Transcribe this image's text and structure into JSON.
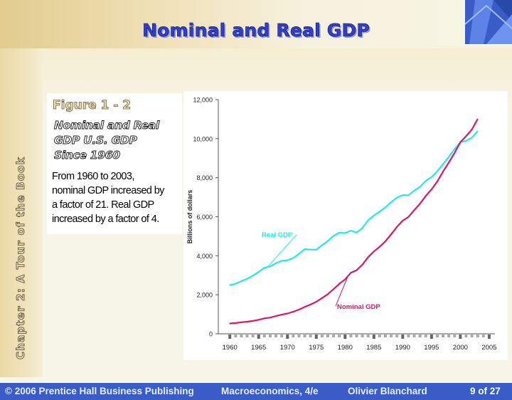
{
  "slide": {
    "title": "Nominal and Real GDP",
    "vertical_label": "Chapter 2:  A Tour of the Book"
  },
  "caption": {
    "figure_label": "Figure 1 - 2",
    "figure_title_lines": [
      "Nominal and Real",
      "GDP U.S. GDP",
      "Since 1960"
    ],
    "description_lines": [
      "From 1960 to 2003,",
      "nominal GDP increased by",
      "a factor of 21.  Real GDP",
      "increased by a factor of 4."
    ]
  },
  "footer": {
    "publisher": "© 2006 Prentice Hall Business Publishing",
    "book": "Macroeconomics, 4/e",
    "author": "Olivier Blanchard",
    "page": "9 of 27"
  },
  "colors": {
    "real_gdp": "#22e8ee",
    "nominal_gdp": "#d8156e",
    "footer": "#3a5cc6",
    "title": "#3240c8"
  },
  "chart_data": {
    "type": "line",
    "ylabel": "Billions of dollars",
    "xlim": [
      1958,
      2006
    ],
    "ylim": [
      0,
      12000
    ],
    "x_ticks": [
      1960,
      1965,
      1970,
      1975,
      1980,
      1985,
      1990,
      1995,
      2000,
      2005
    ],
    "y_ticks": [
      0,
      2000,
      4000,
      6000,
      8000,
      10000,
      12000
    ],
    "y_tick_labels": [
      "0",
      "2,000",
      "4,000",
      "6,000",
      "8,000",
      "10,000",
      "12,000"
    ],
    "series": [
      {
        "name": "Real GDP",
        "x": [
          1960,
          1961,
          1962,
          1963,
          1964,
          1965,
          1966,
          1967,
          1968,
          1969,
          1970,
          1971,
          1972,
          1973,
          1974,
          1975,
          1976,
          1977,
          1978,
          1979,
          1980,
          1981,
          1982,
          1983,
          1984,
          1985,
          1986,
          1987,
          1988,
          1989,
          1990,
          1991,
          1992,
          1993,
          1994,
          1995,
          1996,
          1997,
          1998,
          1999,
          2000,
          2001,
          2002,
          2003
        ],
        "values": [
          2500,
          2560,
          2700,
          2820,
          2980,
          3170,
          3380,
          3450,
          3620,
          3740,
          3770,
          3880,
          4100,
          4340,
          4320,
          4310,
          4540,
          4760,
          5020,
          5180,
          5160,
          5290,
          5190,
          5420,
          5820,
          6060,
          6260,
          6480,
          6740,
          6980,
          7110,
          7100,
          7340,
          7530,
          7840,
          8030,
          8330,
          8700,
          9070,
          9470,
          9820,
          9890,
          10050,
          10380
        ]
      },
      {
        "name": "Nominal GDP",
        "x": [
          1960,
          1961,
          1962,
          1963,
          1964,
          1965,
          1966,
          1967,
          1968,
          1969,
          1970,
          1971,
          1972,
          1973,
          1974,
          1975,
          1976,
          1977,
          1978,
          1979,
          1980,
          1981,
          1982,
          1983,
          1984,
          1985,
          1986,
          1987,
          1988,
          1989,
          1990,
          1991,
          1992,
          1993,
          1994,
          1995,
          1996,
          1997,
          1998,
          1999,
          2000,
          2001,
          2002,
          2003
        ],
        "values": [
          530,
          550,
          590,
          620,
          660,
          720,
          790,
          830,
          910,
          980,
          1040,
          1130,
          1240,
          1380,
          1500,
          1640,
          1830,
          2030,
          2290,
          2560,
          2790,
          3130,
          3260,
          3540,
          3930,
          4220,
          4460,
          4740,
          5100,
          5480,
          5800,
          5990,
          6340,
          6660,
          7070,
          7400,
          7810,
          8320,
          8780,
          9270,
          9820,
          10130,
          10470,
          11000
        ]
      }
    ],
    "annotations": [
      {
        "text": "Real GDP",
        "series": "Real GDP",
        "point_x": 1966.5
      },
      {
        "text": "Nominal GDP",
        "series": "Nominal GDP",
        "point_x": 1980.5
      }
    ]
  }
}
